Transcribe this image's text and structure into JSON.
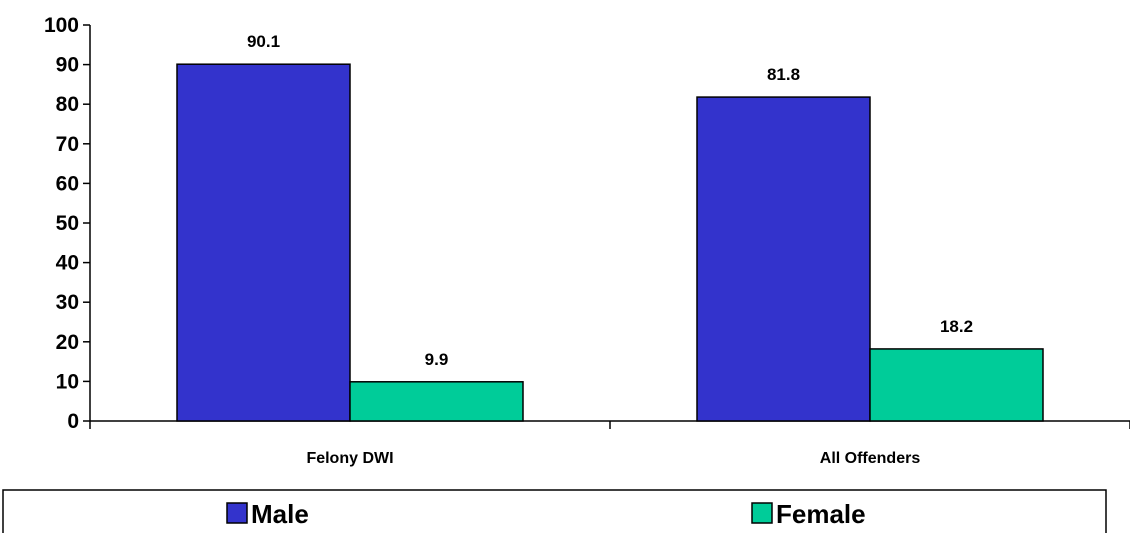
{
  "chart_data": {
    "type": "bar",
    "categories": [
      "Felony DWI",
      "All Offenders"
    ],
    "series": [
      {
        "name": "Male",
        "values": [
          90.1,
          81.8
        ],
        "color": "#3333cc"
      },
      {
        "name": "Female",
        "values": [
          9.9,
          18.2
        ],
        "color": "#00cc99"
      }
    ],
    "data_labels": [
      [
        "90.1",
        "81.8"
      ],
      [
        "9.9",
        "18.2"
      ]
    ],
    "ylim": [
      0,
      100
    ],
    "yticks": [
      0,
      10,
      20,
      30,
      40,
      50,
      60,
      70,
      80,
      90,
      100
    ],
    "legend_position": "bottom",
    "grid": false
  }
}
